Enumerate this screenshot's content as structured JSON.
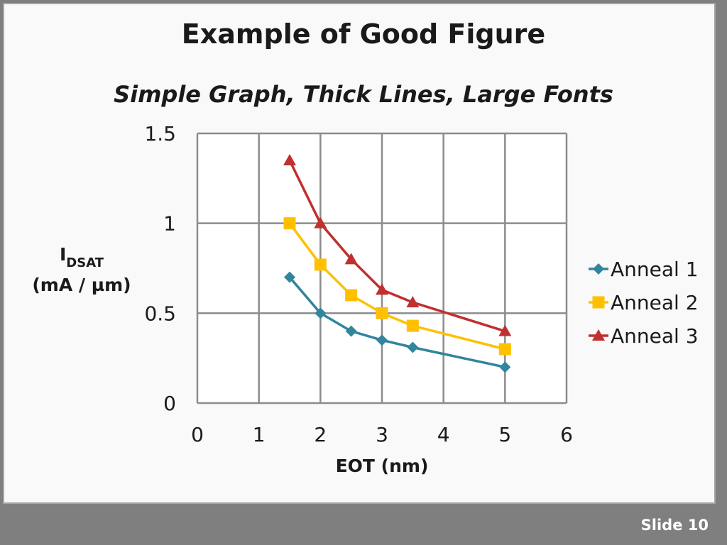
{
  "slide": {
    "title": "Example of Good Figure",
    "subtitle": "Simple Graph, Thick Lines, Large Fonts",
    "footer": "Slide 10"
  },
  "chart_data": {
    "type": "line",
    "xlabel": "EOT (nm)",
    "ylabel": {
      "main": "I",
      "subscript": "DSAT",
      "units": "(mA / µm)"
    },
    "xlim": [
      0,
      6
    ],
    "ylim": [
      0,
      1.5
    ],
    "xticks": [
      "0",
      "1",
      "2",
      "3",
      "4",
      "5",
      "6"
    ],
    "yticks": [
      "0",
      "0.5",
      "1",
      "1.5"
    ],
    "xtick_values": [
      0,
      1,
      2,
      3,
      4,
      5,
      6
    ],
    "ytick_values": [
      0,
      0.5,
      1,
      1.5
    ],
    "grid": true,
    "legend_position": "right",
    "series": [
      {
        "name": "Anneal 1",
        "color": "#31859c",
        "marker": "diamond",
        "x": [
          1.5,
          2,
          2.5,
          3,
          3.5,
          5
        ],
        "y": [
          0.7,
          0.5,
          0.4,
          0.35,
          0.31,
          0.2
        ]
      },
      {
        "name": "Anneal 2",
        "color": "#ffc000",
        "marker": "square",
        "x": [
          1.5,
          2,
          2.5,
          3,
          3.5,
          5
        ],
        "y": [
          1.0,
          0.77,
          0.6,
          0.5,
          0.43,
          0.3
        ]
      },
      {
        "name": "Anneal 3",
        "color": "#c0302f",
        "marker": "triangle",
        "x": [
          1.5,
          2,
          2.5,
          3,
          3.5,
          5
        ],
        "y": [
          1.35,
          1.0,
          0.8,
          0.63,
          0.56,
          0.4
        ]
      }
    ]
  }
}
